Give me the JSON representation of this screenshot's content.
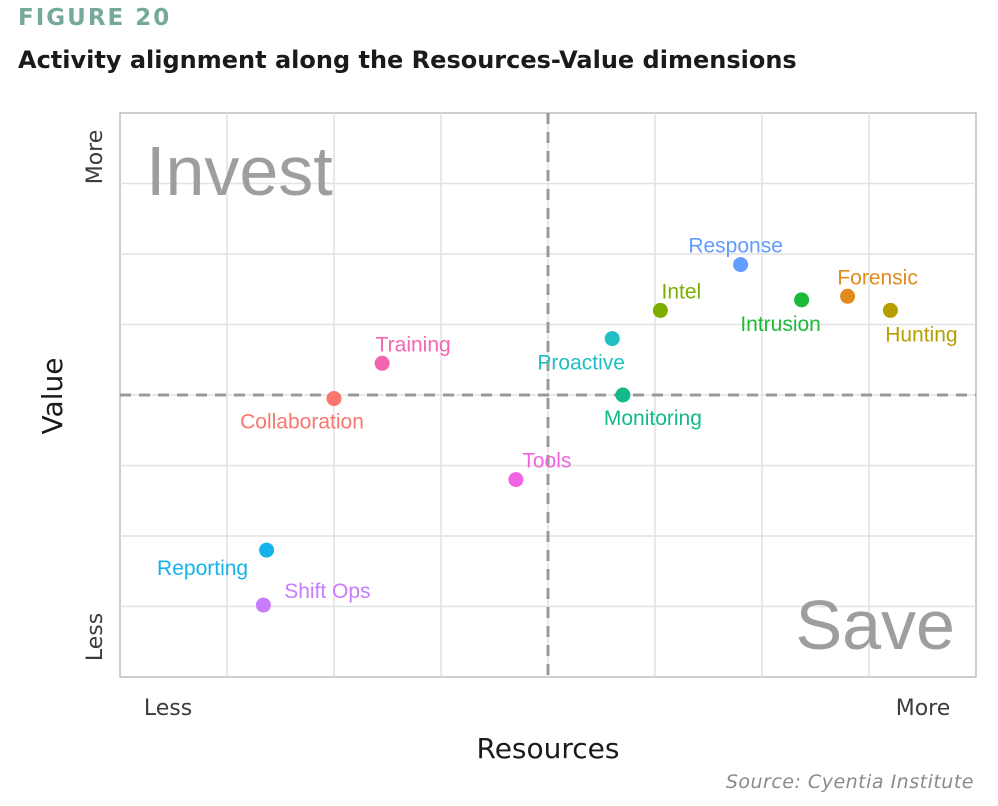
{
  "figure_label": "FIGURE 20",
  "title": "Activity alignment along the Resources-Value dimensions",
  "source": "Source: Cyentia Institute",
  "chart_data": {
    "type": "scatter",
    "xlabel": "Resources",
    "ylabel": "Value",
    "x_tick_labels": {
      "low": "Less",
      "high": "More"
    },
    "y_tick_labels": {
      "low": "Less",
      "high": "More"
    },
    "xlim": [
      0,
      8
    ],
    "ylim": [
      0,
      8
    ],
    "reference_lines": {
      "x": 4,
      "y": 4
    },
    "quadrant_labels": {
      "top_left": "Invest",
      "bottom_right": "Save"
    },
    "grid": true,
    "legend": "none",
    "points": [
      {
        "label": "Response",
        "x": 5.8,
        "y": 5.85,
        "color": "#619cff"
      },
      {
        "label": "Forensic",
        "x": 6.8,
        "y": 5.4,
        "color": "#e08b1c"
      },
      {
        "label": "Intrusion",
        "x": 6.37,
        "y": 5.35,
        "color": "#1dba3a"
      },
      {
        "label": "Hunting",
        "x": 7.2,
        "y": 5.2,
        "color": "#b79f00"
      },
      {
        "label": "Intel",
        "x": 5.05,
        "y": 5.2,
        "color": "#7cae00"
      },
      {
        "label": "Proactive",
        "x": 4.6,
        "y": 4.8,
        "color": "#1fbfc4"
      },
      {
        "label": "Training",
        "x": 2.45,
        "y": 4.45,
        "color": "#f564b0"
      },
      {
        "label": "Collaboration",
        "x": 2.0,
        "y": 3.95,
        "color": "#f8766d"
      },
      {
        "label": "Monitoring",
        "x": 4.7,
        "y": 4.0,
        "color": "#12b98a"
      },
      {
        "label": "Tools",
        "x": 3.7,
        "y": 2.8,
        "color": "#f362e2"
      },
      {
        "label": "Reporting",
        "x": 1.37,
        "y": 1.8,
        "color": "#15b3ec"
      },
      {
        "label": "Shift Ops",
        "x": 1.34,
        "y": 1.02,
        "color": "#c77cff"
      }
    ]
  }
}
